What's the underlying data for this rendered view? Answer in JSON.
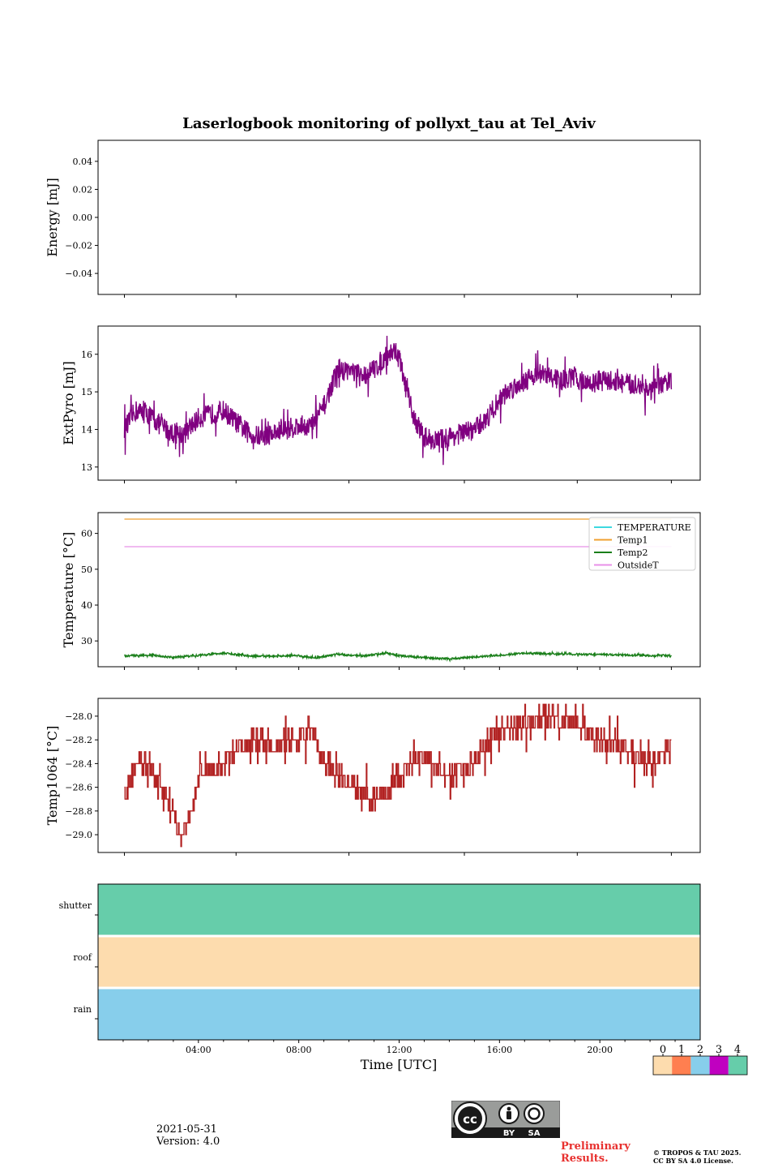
{
  "chart_data": {
    "type": "line",
    "title": "Laserlogbook monitoring of pollyxt_tau at Tel_Aviv",
    "xlabel": "Time [UTC]",
    "x_tick_labels": [
      "04:00",
      "08:00",
      "12:00",
      "16:00",
      "20:00"
    ],
    "panels": [
      {
        "id": "energy",
        "ylabel": "Energy [mJ]",
        "ylim": [
          -0.055,
          0.055
        ],
        "yticks": [
          0.04,
          0.02,
          0.0,
          -0.02,
          -0.04
        ],
        "ytick_labels": [
          "0.04",
          "0.02",
          "0.00",
          "−0.02",
          "−0.04"
        ],
        "series": []
      },
      {
        "id": "extpyro",
        "ylabel": "ExtPyro [mJ]",
        "ylim": [
          12.65,
          16.75
        ],
        "yticks": [
          16,
          15,
          14,
          13
        ],
        "ytick_labels": [
          "16",
          "15",
          "14",
          "13"
        ],
        "series": [
          {
            "color": "#800080",
            "noise": 0.28,
            "x": [
              1.05,
              1.5,
              2.0,
              2.5,
              3.0,
              3.5,
              4.0,
              4.5,
              5.0,
              5.5,
              6.0,
              6.5,
              7.0,
              7.5,
              8.0,
              8.5,
              9.0,
              9.5,
              10.0,
              10.5,
              11.0,
              11.4,
              11.8,
              12.0,
              12.3,
              12.6,
              13.0,
              13.5,
              14.0,
              14.5,
              15.0,
              15.5,
              16.0,
              16.5,
              17.0,
              17.5,
              18.0,
              18.5,
              19.0,
              19.5,
              20.0,
              20.5,
              21.0,
              21.5,
              22.0,
              22.5,
              22.85
            ],
            "y": [
              14.0,
              14.5,
              14.4,
              14.1,
              13.9,
              13.9,
              14.3,
              14.4,
              14.5,
              14.2,
              13.9,
              13.8,
              13.9,
              14.0,
              14.1,
              14.1,
              14.6,
              15.5,
              15.6,
              15.4,
              15.6,
              15.9,
              16.1,
              15.9,
              15.0,
              14.3,
              13.8,
              13.7,
              13.8,
              13.9,
              14.0,
              14.3,
              14.8,
              15.1,
              15.3,
              15.5,
              15.4,
              15.3,
              15.4,
              15.2,
              15.3,
              15.3,
              15.2,
              15.2,
              15.0,
              15.2,
              15.3
            ]
          }
        ]
      },
      {
        "id": "temperature",
        "ylabel": "Temperature [°C]",
        "ylim": [
          22.8,
          65.8
        ],
        "yticks": [
          60,
          50,
          40,
          30
        ],
        "ytick_labels": [
          "60",
          "50",
          "40",
          "30"
        ],
        "legend": {
          "placement": "top-right",
          "entries": [
            {
              "name": "TEMPERATURE",
              "color": "#3dd9e0"
            },
            {
              "name": "Temp1",
              "color": "#f0a030"
            },
            {
              "name": "Temp2",
              "color": "#1a7f1a"
            },
            {
              "name": "OutsideT",
              "color": "#e890e8"
            }
          ]
        },
        "series": [
          {
            "color": "#f0a030",
            "noise": 0,
            "x": [
              1.05,
              22.85
            ],
            "y": [
              64.0,
              64.0
            ]
          },
          {
            "color": "#e890e8",
            "noise": 0,
            "x": [
              1.05,
              22.85
            ],
            "y": [
              56.3,
              56.3
            ]
          },
          {
            "color": "#1a7f1a",
            "noise": 0.25,
            "x": [
              1.05,
              2.0,
              3.0,
              4.0,
              5.0,
              6.0,
              7.0,
              8.0,
              8.6,
              9.5,
              10.5,
              11.5,
              12.0,
              13.0,
              14.0,
              15.0,
              16.0,
              17.0,
              18.0,
              19.0,
              20.0,
              21.0,
              22.0,
              22.85
            ],
            "y": [
              25.8,
              26.1,
              25.4,
              26.0,
              26.6,
              25.8,
              25.7,
              25.9,
              25.2,
              26.3,
              25.8,
              26.6,
              25.9,
              25.3,
              25.0,
              25.5,
              26.0,
              26.6,
              26.4,
              26.3,
              26.2,
              26.1,
              25.9,
              25.9
            ]
          }
        ]
      },
      {
        "id": "temp1064",
        "ylabel": "Temp1064 [°C]",
        "ylim": [
          -29.15,
          -27.85
        ],
        "yticks": [
          -28.0,
          -28.2,
          -28.4,
          -28.6,
          -28.8,
          -29.0
        ],
        "ytick_labels": [
          "−28.0",
          "−28.2",
          "−28.4",
          "−28.6",
          "−28.8",
          "−29.0"
        ],
        "series": [
          {
            "color": "#b22222",
            "noise": 0.09,
            "step": 0.1,
            "x": [
              1.05,
              1.5,
              2.0,
              2.5,
              3.0,
              3.3,
              3.7,
              4.0,
              4.5,
              5.0,
              5.5,
              6.0,
              6.5,
              7.0,
              7.5,
              8.0,
              8.5,
              9.0,
              9.5,
              10.0,
              10.5,
              11.0,
              11.5,
              12.0,
              12.5,
              13.0,
              13.5,
              14.0,
              14.5,
              15.0,
              15.5,
              16.0,
              16.5,
              17.0,
              17.5,
              18.0,
              18.5,
              19.0,
              19.5,
              20.0,
              20.5,
              21.0,
              21.5,
              22.0,
              22.5,
              22.85
            ],
            "y": [
              -28.7,
              -28.4,
              -28.4,
              -28.6,
              -28.85,
              -29.0,
              -28.85,
              -28.5,
              -28.45,
              -28.4,
              -28.3,
              -28.2,
              -28.2,
              -28.25,
              -28.2,
              -28.2,
              -28.1,
              -28.4,
              -28.5,
              -28.55,
              -28.65,
              -28.7,
              -28.65,
              -28.5,
              -28.4,
              -28.35,
              -28.4,
              -28.5,
              -28.45,
              -28.4,
              -28.2,
              -28.15,
              -28.1,
              -28.05,
              -28.0,
              -28.0,
              -28.0,
              -28.05,
              -28.15,
              -28.2,
              -28.2,
              -28.3,
              -28.35,
              -28.4,
              -28.3,
              -28.3
            ]
          }
        ]
      }
    ],
    "status_panel": {
      "type": "heatmap",
      "rows": [
        {
          "label": "shutter",
          "value": 4
        },
        {
          "label": "roof",
          "value": 0
        },
        {
          "label": "rain",
          "value": 2
        }
      ]
    },
    "colorbar": {
      "ticks": [
        "0",
        "1",
        "2",
        "3",
        "4"
      ],
      "colors": [
        "#fddcae",
        "#ff7f50",
        "#87ceeb",
        "#c000c0",
        "#66cdaa"
      ]
    }
  },
  "footer": {
    "date": "2021-05-31",
    "version": "Version: 4.0",
    "preliminary": "Preliminary\nResults.",
    "copyright_line1": "© TROPOS & TAU 2025.",
    "copyright_line2": "CC BY SA 4.0 License.",
    "license_badge": {
      "by": "BY",
      "sa": "SA"
    }
  }
}
